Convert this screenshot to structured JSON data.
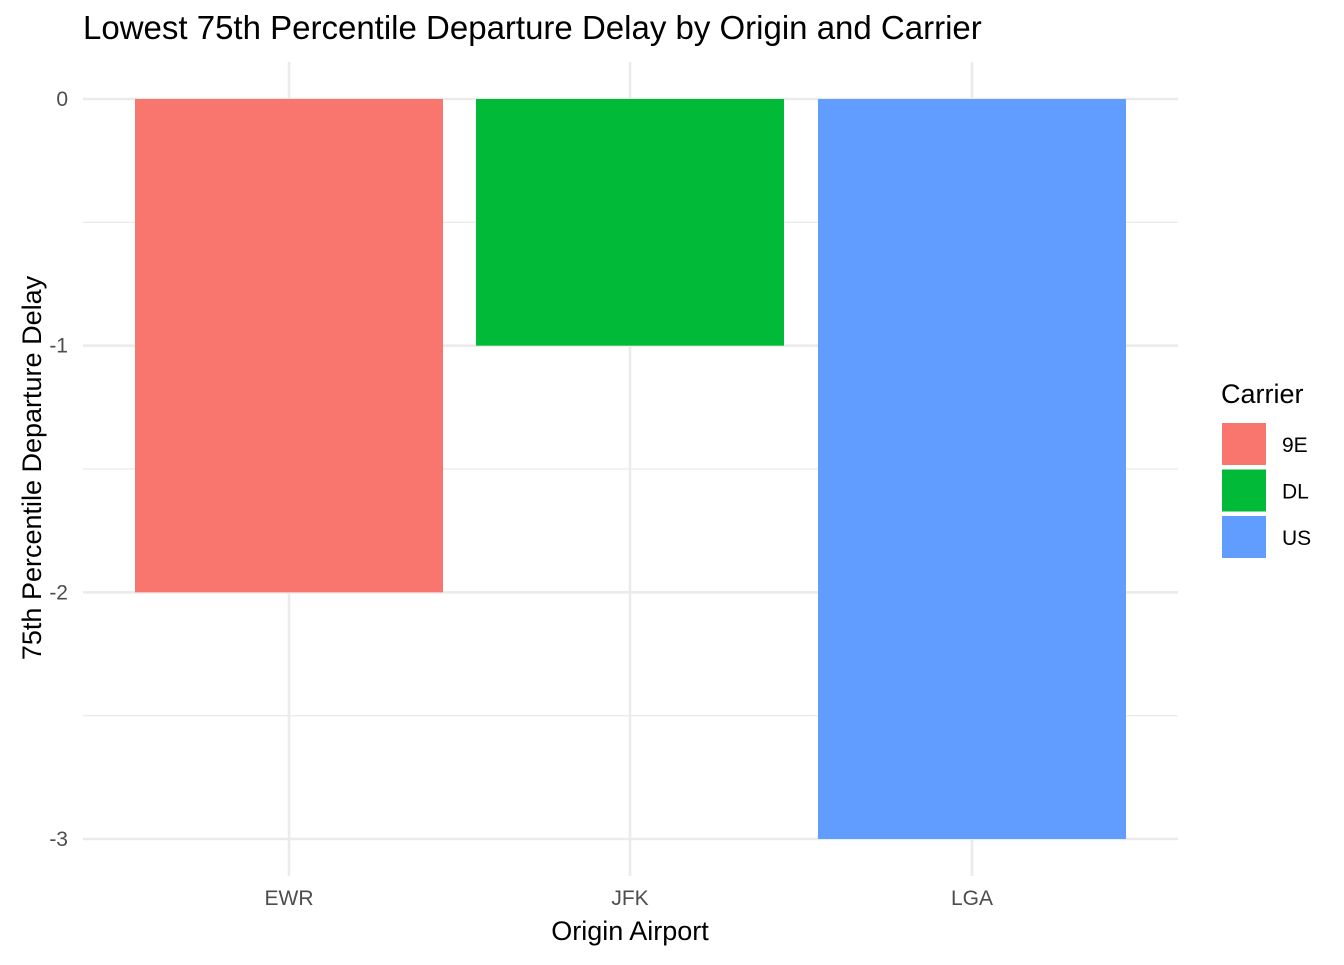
{
  "chart_data": {
    "type": "bar",
    "title": "Lowest 75th Percentile Departure Delay by Origin and Carrier",
    "xlabel": "Origin Airport",
    "ylabel": "75th Percentile Departure Delay",
    "categories": [
      "EWR",
      "JFK",
      "LGA"
    ],
    "values": [
      -2,
      -1,
      -3
    ],
    "fill_by": [
      "9E",
      "DL",
      "US"
    ],
    "ylim": [
      -3,
      0
    ],
    "yticks": [
      0,
      -1,
      -2,
      -3
    ],
    "ytick_labels": [
      "0",
      "-1",
      "-2",
      "-3"
    ],
    "grid": true,
    "legend": {
      "title": "Carrier",
      "placement": "right",
      "entries": [
        {
          "label": "9E",
          "color": "#F8766D"
        },
        {
          "label": "DL",
          "color": "#00BA38"
        },
        {
          "label": "US",
          "color": "#619CFF"
        }
      ]
    },
    "colors": {
      "9E": "#F8766D",
      "DL": "#00BA38",
      "US": "#619CFF"
    }
  }
}
